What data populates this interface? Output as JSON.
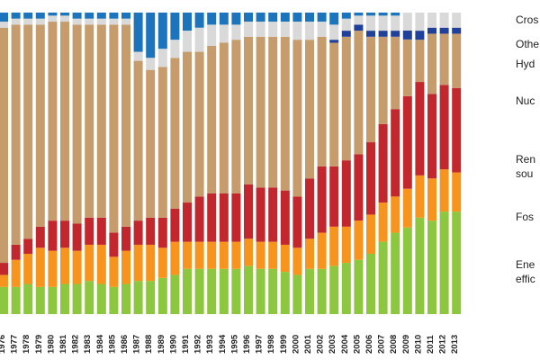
{
  "chart_data": {
    "type": "bar",
    "stacked": true,
    "normalized": true,
    "categories": [
      "1976",
      "1977",
      "1978",
      "1979",
      "1980",
      "1981",
      "1982",
      "1983",
      "1984",
      "1985",
      "1986",
      "1987",
      "1988",
      "1989",
      "1990",
      "1991",
      "1992",
      "1993",
      "1994",
      "1995",
      "1996",
      "1997",
      "1998",
      "1999",
      "2000",
      "2001",
      "2002",
      "2003",
      "2004",
      "2005",
      "2006",
      "2007",
      "2008",
      "2009",
      "2010",
      "2011",
      "2012",
      "2013"
    ],
    "ylim": [
      0,
      100
    ],
    "series": [
      {
        "name": "Energy efficiency",
        "color": "#8dc63f",
        "values": [
          9,
          9,
          10,
          9,
          9,
          10,
          10,
          11,
          10,
          9,
          10,
          11,
          11,
          12,
          13,
          15,
          15,
          15,
          15,
          15,
          16,
          15,
          15,
          14,
          13,
          15,
          15,
          16,
          17,
          18,
          20,
          24,
          27,
          29,
          32,
          31,
          34,
          34
        ]
      },
      {
        "name": "Fossil fuels",
        "color": "#f7941d",
        "values": [
          4,
          9,
          10,
          13,
          12,
          12,
          11,
          12,
          13,
          10,
          11,
          12,
          12,
          10,
          11,
          9,
          9,
          9,
          9,
          9,
          9,
          9,
          9,
          9,
          9,
          10,
          12,
          13,
          12,
          13,
          13,
          13,
          12,
          13,
          14,
          14,
          14,
          13
        ]
      },
      {
        "name": "Renewable sources",
        "color": "#c1272d",
        "values": [
          4,
          5,
          5,
          7,
          10,
          9,
          9,
          9,
          9,
          8,
          8,
          8,
          9,
          10,
          11,
          13,
          15,
          16,
          16,
          16,
          18,
          18,
          18,
          18,
          17,
          20,
          22,
          20,
          22,
          22,
          24,
          26,
          29,
          31,
          31,
          28,
          28,
          28
        ]
      },
      {
        "name": "Nuclear",
        "color": "#c69c6d",
        "values": [
          78,
          73,
          71,
          67,
          66,
          66,
          66,
          64,
          64,
          69,
          67,
          53,
          49,
          50,
          50,
          50,
          48,
          49,
          50,
          51,
          49,
          50,
          50,
          51,
          52,
          46,
          43,
          41,
          41,
          41,
          35,
          29,
          24,
          19,
          14,
          20,
          17,
          18
        ]
      },
      {
        "name": "Hydrogen & fuel cells",
        "color": "#21409a",
        "values": [
          0,
          0,
          0,
          0,
          0,
          0,
          0,
          0,
          0,
          0,
          0,
          0,
          0,
          0,
          0,
          0,
          0,
          0,
          0,
          0,
          0,
          0,
          0,
          0,
          0,
          0,
          0,
          1,
          2,
          2,
          2,
          2,
          2,
          3,
          3,
          2,
          2,
          2
        ]
      },
      {
        "name": "Other",
        "color": "#d9d9d9",
        "values": [
          2,
          2,
          2,
          2,
          2,
          2,
          2,
          2,
          2,
          2,
          2,
          3,
          4,
          6,
          6,
          7,
          8,
          7,
          6,
          5,
          5,
          5,
          5,
          5,
          6,
          6,
          5,
          5,
          4,
          3,
          5,
          5,
          5,
          6,
          6,
          5,
          5,
          5
        ]
      },
      {
        "name": "Cross-cutting",
        "color": "#1c75bc",
        "values": [
          3,
          2,
          2,
          2,
          1,
          1,
          2,
          2,
          2,
          2,
          2,
          13,
          15,
          12,
          9,
          6,
          5,
          4,
          4,
          4,
          3,
          3,
          3,
          3,
          3,
          3,
          3,
          4,
          2,
          1,
          1,
          1,
          1,
          -1,
          0,
          0,
          0,
          0
        ]
      }
    ],
    "legend_position": "right",
    "legend_labels": [
      {
        "key": "cross",
        "text": "Cros"
      },
      {
        "key": "other",
        "text": "Othe"
      },
      {
        "key": "hydrogen",
        "text": "Hyd"
      },
      {
        "key": "nuclear",
        "text": "Nuc"
      },
      {
        "key": "renewable_1",
        "text": "Ren"
      },
      {
        "key": "renewable_2",
        "text": "sou"
      },
      {
        "key": "fossil",
        "text": "Fos"
      },
      {
        "key": "efficiency_1",
        "text": "Ene"
      },
      {
        "key": "efficiency_2",
        "text": "effic"
      }
    ]
  }
}
